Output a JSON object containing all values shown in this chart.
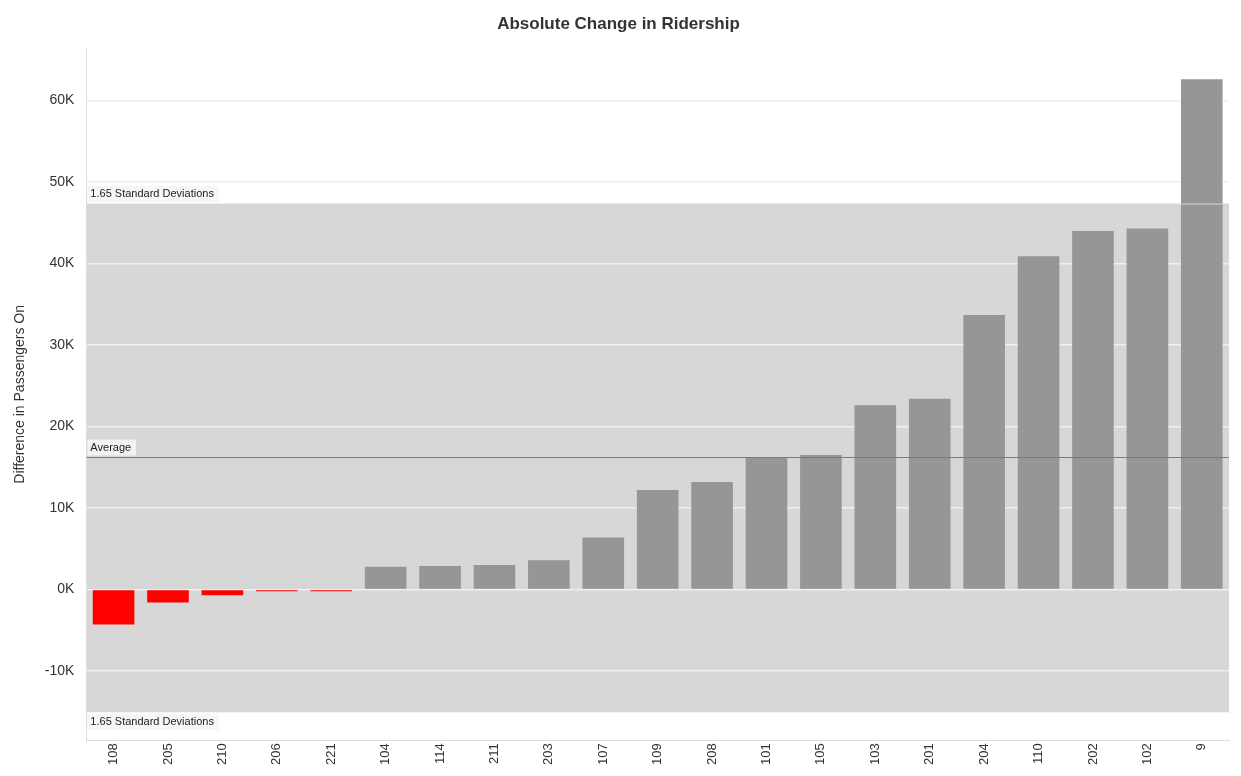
{
  "chart_data": {
    "type": "bar",
    "title": "Absolute Change in Ridership",
    "ylabel": "Difference in Passengers On",
    "categories": [
      "108",
      "205",
      "210",
      "206",
      "221",
      "104",
      "114",
      "211",
      "203",
      "107",
      "109",
      "208",
      "101",
      "105",
      "103",
      "201",
      "204",
      "110",
      "202",
      "102",
      "9"
    ],
    "values": [
      -4300,
      -1600,
      -700,
      -200,
      -200,
      2800,
      2900,
      3000,
      3600,
      6400,
      12200,
      13200,
      16200,
      16500,
      22600,
      23400,
      33700,
      40900,
      44000,
      44300,
      62600
    ],
    "colors": [
      "#ff0000",
      "#ff0000",
      "#ff0000",
      "#ff0000",
      "#ff0000",
      "#969696",
      "#969696",
      "#969696",
      "#969696",
      "#969696",
      "#969696",
      "#969696",
      "#969696",
      "#969696",
      "#969696",
      "#969696",
      "#969696",
      "#969696",
      "#969696",
      "#969696",
      "#969696"
    ],
    "ylim": [
      -18500,
      66400
    ],
    "yticks": [
      {
        "value": -10000,
        "label": "-10K"
      },
      {
        "value": 0,
        "label": "0K"
      },
      {
        "value": 10000,
        "label": "10K"
      },
      {
        "value": 20000,
        "label": "20K"
      },
      {
        "value": 30000,
        "label": "30K"
      },
      {
        "value": 40000,
        "label": "40K"
      },
      {
        "value": 50000,
        "label": "50K"
      },
      {
        "value": 60000,
        "label": "60K"
      }
    ],
    "grid": "y",
    "legend": false,
    "bands": [
      {
        "axis": "y",
        "from": -15000,
        "to": 47300,
        "color": "#d7d7d7"
      }
    ],
    "ref_lines": [
      {
        "axis": "y",
        "value": 16200,
        "label": "Average",
        "color": "#7a7a7a"
      },
      {
        "axis": "y",
        "value": 47300,
        "label": "1.65 Standard Deviations",
        "color": "#d7d7d7"
      },
      {
        "axis": "y",
        "value": -15000,
        "label": "1.65 Standard Deviations",
        "color": "#d7d7d7"
      }
    ]
  }
}
